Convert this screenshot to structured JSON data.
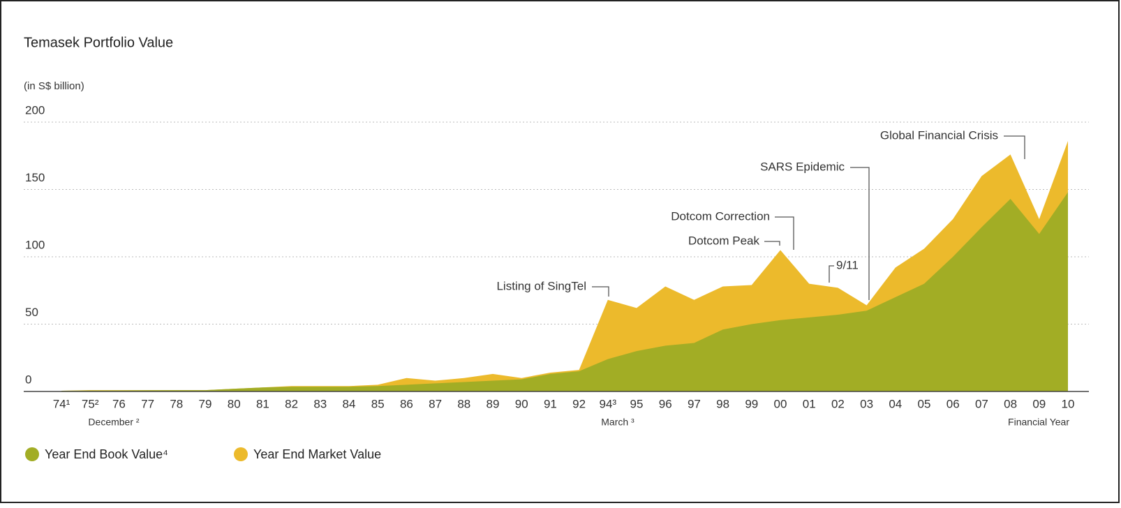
{
  "chart_data": {
    "type": "area",
    "title": "Temasek Portfolio Value",
    "subtitle": "(in S$ billion)",
    "categories": [
      "74¹",
      "75²",
      "76",
      "77",
      "78",
      "79",
      "80",
      "81",
      "82",
      "83",
      "84",
      "85",
      "86",
      "87",
      "88",
      "89",
      "90",
      "91",
      "92",
      "94³",
      "95",
      "96",
      "97",
      "98",
      "99",
      "00",
      "01",
      "02",
      "03",
      "04",
      "05",
      "06",
      "07",
      "08",
      "09",
      "10"
    ],
    "x_sublabels": [
      "December ²",
      "March ³",
      "Financial Year"
    ],
    "series": [
      {
        "name": "Year End Book Value⁴",
        "color": "#a2ad25",
        "values": [
          0.5,
          0.7,
          0.8,
          0.9,
          1,
          1,
          2,
          3,
          3.5,
          3.5,
          3.5,
          4,
          5,
          6,
          7,
          8,
          9,
          13,
          15,
          24,
          30,
          34,
          36,
          46,
          50,
          53,
          55,
          57,
          60,
          70,
          80,
          100,
          122,
          143,
          117,
          148
        ]
      },
      {
        "name": "Year End Market Value",
        "color": "#ecba2c",
        "values": [
          0.5,
          1,
          1,
          1,
          1,
          1,
          2,
          3,
          4,
          4,
          4,
          5,
          10,
          8,
          10,
          13,
          10,
          14,
          16,
          68,
          62,
          78,
          68,
          78,
          79,
          105,
          80,
          77,
          64,
          92,
          106,
          128,
          160,
          176,
          128,
          186
        ]
      }
    ],
    "annotations": [
      "Listing of SingTel",
      "Dotcom Correction",
      "Dotcom Peak",
      "9/11",
      "SARS Epidemic",
      "Global Financial Crisis"
    ],
    "ylim": [
      0,
      200
    ],
    "yticks": [
      0,
      50,
      100,
      150,
      200
    ],
    "grid": true
  }
}
